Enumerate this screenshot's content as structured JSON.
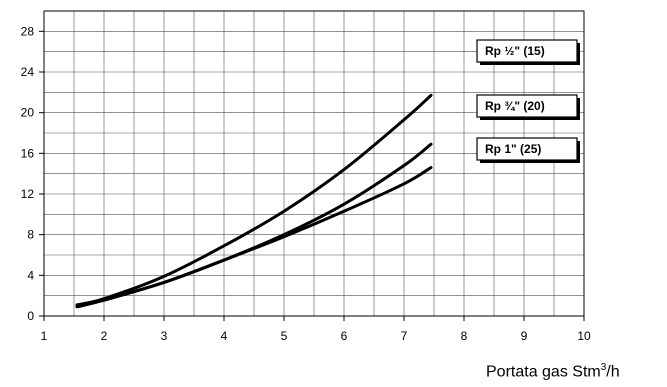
{
  "chart_data": {
    "type": "line",
    "xlabel_main": "Portata gas Stm",
    "xlabel_sup": "3",
    "xlabel_tail": "/h",
    "xlim": [
      1,
      10
    ],
    "ylim": [
      0,
      30
    ],
    "xticks": [
      1,
      2,
      3,
      4,
      5,
      6,
      7,
      8,
      9,
      10
    ],
    "yticks": [
      0,
      4,
      8,
      12,
      16,
      20,
      24,
      28
    ],
    "grid": true,
    "series": [
      {
        "name": "Rp ½\" (15)",
        "x": [
          1.55,
          2,
          3,
          4,
          5,
          6,
          7,
          7.45
        ],
        "y": [
          1.1,
          1.7,
          3.9,
          6.9,
          10.3,
          14.4,
          19.3,
          21.7
        ]
      },
      {
        "name": "Rp ¾\" (20)",
        "x": [
          1.55,
          2,
          3,
          4,
          5,
          6,
          7,
          7.45
        ],
        "y": [
          1.0,
          1.6,
          3.3,
          5.5,
          8.0,
          11.0,
          14.8,
          16.9
        ]
      },
      {
        "name": "Rp 1\" (25)",
        "x": [
          1.55,
          2,
          3,
          4,
          5,
          6,
          7,
          7.45
        ],
        "y": [
          0.9,
          1.55,
          3.3,
          5.5,
          7.8,
          10.3,
          13.0,
          14.6
        ]
      }
    ]
  }
}
